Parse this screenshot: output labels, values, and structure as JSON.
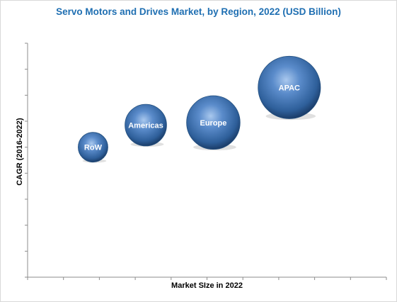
{
  "chart_data": {
    "type": "scatter",
    "variant": "bubble",
    "title": "Servo Motors and Drives Market, by Region, 2022 (USD Billion)",
    "xlabel": "Market SIze in 2022",
    "ylabel": "CAGR (2016-2022)",
    "x_ticks": 10,
    "y_ticks": 9,
    "tick_labels_shown": false,
    "grid": false,
    "legend": "none",
    "bubble_color": "#2e5f9a",
    "label_color": "#ffffff",
    "title_color": "#1f6fb2",
    "points": [
      {
        "label": "RoW",
        "x": 1.55,
        "y": 5.0,
        "size": 1.0
      },
      {
        "label": "Americas",
        "x": 2.8,
        "y": 5.85,
        "size": 1.4
      },
      {
        "label": "Europe",
        "x": 4.4,
        "y": 5.95,
        "size": 1.8
      },
      {
        "label": "APAC",
        "x": 6.2,
        "y": 7.3,
        "size": 2.1
      }
    ],
    "xlim": [
      0,
      8.5
    ],
    "ylim": [
      0,
      9
    ]
  }
}
